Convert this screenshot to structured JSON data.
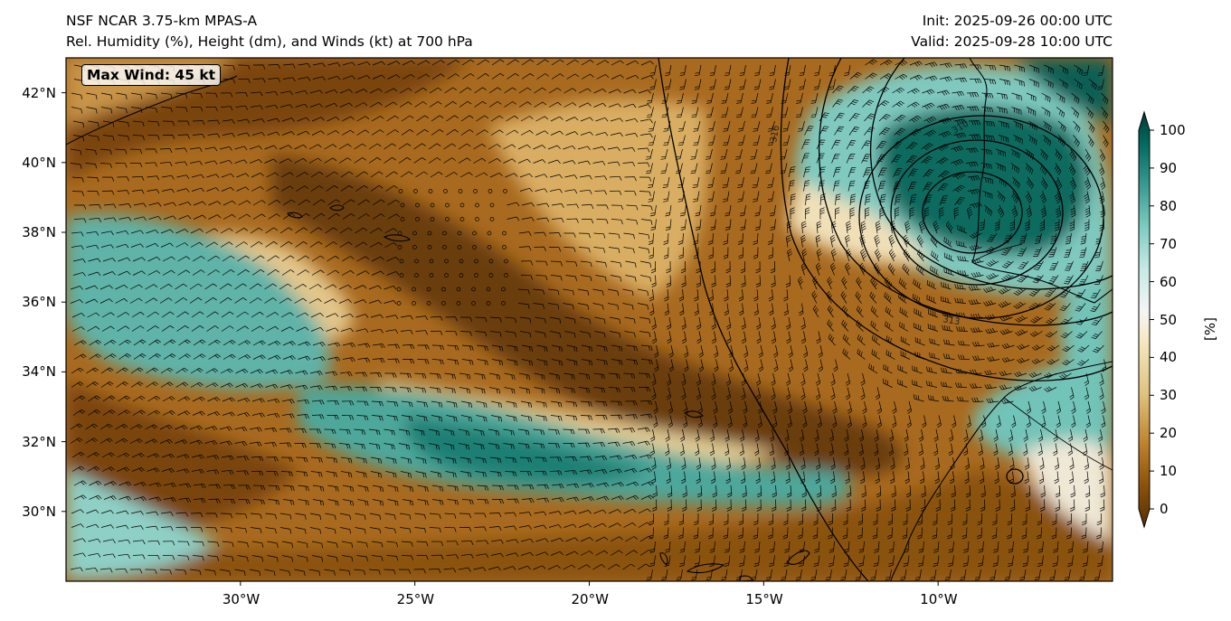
{
  "titles": {
    "left_line1": "NSF NCAR 3.75-km MPAS-A",
    "left_line2": "Rel. Humidity (%), Height (dm), and Winds (kt) at 700 hPa",
    "right_line1": "Init: 2025-09-26 00:00 UTC",
    "right_line2": "Valid: 2025-09-28 10:00 UTC"
  },
  "annotation": {
    "max_wind": "Max Wind: 45 kt"
  },
  "map": {
    "lon_range": [
      -35,
      -5
    ],
    "lat_range": [
      28,
      43
    ],
    "lat_ticks": [
      {
        "value": 42,
        "label": "42°N"
      },
      {
        "value": 40,
        "label": "40°N"
      },
      {
        "value": 38,
        "label": "38°N"
      },
      {
        "value": 36,
        "label": "36°N"
      },
      {
        "value": 34,
        "label": "34°N"
      },
      {
        "value": 32,
        "label": "32°N"
      },
      {
        "value": 30,
        "label": "30°N"
      }
    ],
    "lon_ticks": [
      {
        "value": -30,
        "label": "30°W"
      },
      {
        "value": -25,
        "label": "25°W"
      },
      {
        "value": -20,
        "label": "20°W"
      },
      {
        "value": -15,
        "label": "15°W"
      },
      {
        "value": -10,
        "label": "10°W"
      }
    ],
    "contour_labels": [
      "316",
      "310",
      "313"
    ],
    "low_center": {
      "lon": -9,
      "lat": 38.4
    },
    "colors": {
      "dry": "#6b3d08",
      "brown": "#a86a1f",
      "tan": "#e0c080",
      "neutral": "#f3ecd8",
      "light_teal": "#a8dcd6",
      "teal": "#3a9e93",
      "dark_teal": "#00574d"
    }
  },
  "colorbar": {
    "min": 0,
    "max": 100,
    "ticks": [
      "0",
      "10",
      "20",
      "30",
      "40",
      "50",
      "60",
      "70",
      "80",
      "90",
      "100"
    ],
    "unit": "[%]",
    "colors": [
      "#543005",
      "#8c510a",
      "#bf812d",
      "#dfc27d",
      "#f6e8c3",
      "#f5f5f5",
      "#c7eae5",
      "#80cdc1",
      "#35978f",
      "#01665e",
      "#003c30"
    ]
  }
}
